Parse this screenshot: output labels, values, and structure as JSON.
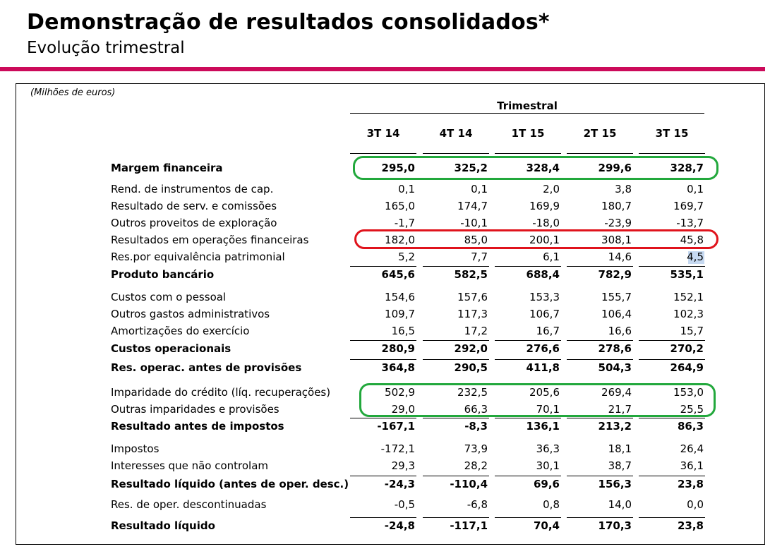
{
  "header": {
    "title": "Demonstração de resultados consolidados*",
    "subtitle": "Evolução trimestral"
  },
  "table": {
    "units": "(Milhões de euros)",
    "group_header": "Trimestral",
    "columns": [
      "3T 14",
      "4T 14",
      "1T 15",
      "2T 15",
      "3T 15"
    ],
    "rows": [
      {
        "label": "Margem financeira",
        "values": [
          "295,0",
          "325,2",
          "328,4",
          "299,6",
          "328,7"
        ],
        "bold": true
      },
      {
        "label": "Rend. de instrumentos de cap.",
        "values": [
          "0,1",
          "0,1",
          "2,0",
          "3,8",
          "0,1"
        ],
        "bold": false
      },
      {
        "label": "Resultado de serv. e comissões",
        "values": [
          "165,0",
          "174,7",
          "169,9",
          "180,7",
          "169,7"
        ],
        "bold": false
      },
      {
        "label": "Outros proveitos de exploração",
        "values": [
          "-1,7",
          "-10,1",
          "-18,0",
          "-23,9",
          "-13,7"
        ],
        "bold": false
      },
      {
        "label": "Resultados em operações financeiras",
        "values": [
          "182,0",
          "85,0",
          "200,1",
          "308,1",
          "45,8"
        ],
        "bold": false
      },
      {
        "label": "Res.por equivalência patrimonial",
        "values": [
          "5,2",
          "7,7",
          "6,1",
          "14,6",
          "4,5"
        ],
        "bold": false
      },
      {
        "label": "Produto bancário",
        "values": [
          "645,6",
          "582,5",
          "688,4",
          "782,9",
          "535,1"
        ],
        "bold": true
      },
      {
        "label": "Custos com o pessoal",
        "values": [
          "154,6",
          "157,6",
          "153,3",
          "155,7",
          "152,1"
        ],
        "bold": false
      },
      {
        "label": "Outros gastos administrativos",
        "values": [
          "109,7",
          "117,3",
          "106,7",
          "106,4",
          "102,3"
        ],
        "bold": false
      },
      {
        "label": "Amortizações do exercício",
        "values": [
          "16,5",
          "17,2",
          "16,7",
          "16,6",
          "15,7"
        ],
        "bold": false
      },
      {
        "label": "Custos operacionais",
        "values": [
          "280,9",
          "292,0",
          "276,6",
          "278,6",
          "270,2"
        ],
        "bold": true
      },
      {
        "label": "Res. operac. antes de provisões",
        "values": [
          "364,8",
          "290,5",
          "411,8",
          "504,3",
          "264,9"
        ],
        "bold": true
      },
      {
        "label": "Imparidade do crédito (líq. recuperações)",
        "values": [
          "502,9",
          "232,5",
          "205,6",
          "269,4",
          "153,0"
        ],
        "bold": false
      },
      {
        "label": "Outras imparidades e provisões",
        "values": [
          "29,0",
          "66,3",
          "70,1",
          "21,7",
          "25,5"
        ],
        "bold": false
      },
      {
        "label": "Resultado antes de impostos",
        "values": [
          "-167,1",
          "-8,3",
          "136,1",
          "213,2",
          "86,3"
        ],
        "bold": true
      },
      {
        "label": "Impostos",
        "values": [
          "-172,1",
          "73,9",
          "36,3",
          "18,1",
          "26,4"
        ],
        "bold": false
      },
      {
        "label": "Interesses que não controlam",
        "values": [
          "29,3",
          "28,2",
          "30,1",
          "38,7",
          "36,1"
        ],
        "bold": false
      },
      {
        "label": "Resultado líquido (antes de oper. desc.)",
        "values": [
          "-24,3",
          "-110,4",
          "69,6",
          "156,3",
          "23,8"
        ],
        "bold": true
      },
      {
        "label": "Res. de oper. descontinuadas",
        "values": [
          "-0,5",
          "-6,8",
          "0,8",
          "14,0",
          "0,0"
        ],
        "bold": false
      },
      {
        "label": "Resultado líquido",
        "values": [
          "-24,8",
          "-117,1",
          "70,4",
          "170,3",
          "23,8"
        ],
        "bold": true
      }
    ]
  },
  "annotations": {
    "green": "#22a83c",
    "red": "#e0131c",
    "highlight": "#c6d9f1",
    "accent_rule": "#cc0a5a"
  }
}
